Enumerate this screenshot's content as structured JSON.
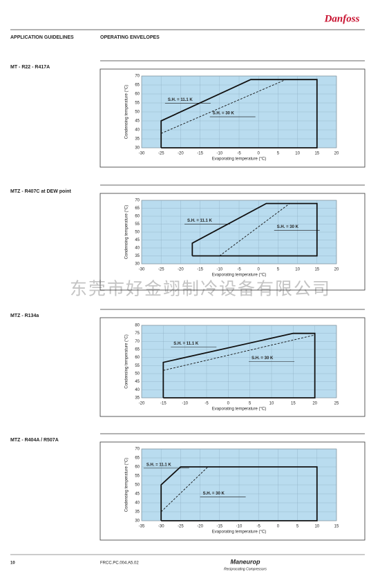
{
  "header": {
    "brand": "Danfoss",
    "left": "APPLICATION GUIDELINES",
    "right": "OPERATING ENVELOPES"
  },
  "watermark": "东莞市好金翊制冷设备有限公司",
  "footer": {
    "page": "10",
    "code": "FRCC.PC.004.A5.02",
    "brand": "Maneurop",
    "tagline": "Reciprocating Compressors"
  },
  "sections": [
    {
      "title": "MT  -  R22 - R417A"
    },
    {
      "title": "MTZ  -  R407C at DEW point"
    },
    {
      "title": "MTZ  -  R134a"
    },
    {
      "title": "MTZ  -  R404A / R507A"
    }
  ],
  "chart_data": [
    {
      "type": "line",
      "xlabel": "Evaporating temperature (°C)",
      "ylabel": "Condensing temperature (°C)",
      "xlim": [
        -30,
        20
      ],
      "xticks": [
        -30,
        -25,
        -20,
        -15,
        -10,
        -5,
        0,
        5,
        10,
        15,
        20
      ],
      "ylim": [
        30,
        70
      ],
      "yticks": [
        30,
        35,
        40,
        45,
        50,
        55,
        60,
        65,
        70
      ],
      "grid": true,
      "series": [
        {
          "name": "S.H. = 11.1 K",
          "color": "#111111",
          "linestyle": "solid",
          "x": [
            -25,
            -25,
            -2,
            15,
            15,
            -25
          ],
          "values": [
            30,
            45,
            68,
            68,
            30,
            30
          ]
        },
        {
          "name": "S.H. = 30 K",
          "color": "#111111",
          "linestyle": "dashed",
          "x": [
            -25,
            7
          ],
          "values": [
            38,
            68
          ]
        }
      ]
    },
    {
      "type": "line",
      "xlabel": "Evaporating temperature (°C)",
      "ylabel": "Condensing temperature (°C)",
      "xlim": [
        -30,
        20
      ],
      "xticks": [
        -30,
        -25,
        -20,
        -15,
        -10,
        -5,
        0,
        5,
        10,
        15,
        20
      ],
      "ylim": [
        30,
        70
      ],
      "yticks": [
        30,
        35,
        40,
        45,
        50,
        55,
        60,
        65,
        70
      ],
      "grid": true,
      "series": [
        {
          "name": "S.H. = 11.1 K",
          "color": "#111111",
          "linestyle": "solid",
          "x": [
            -17,
            -17,
            2,
            15,
            15,
            -17
          ],
          "values": [
            35,
            43,
            68,
            68,
            35,
            35
          ]
        },
        {
          "name": "S.H. = 30 K",
          "color": "#111111",
          "linestyle": "dashed",
          "x": [
            -10,
            8
          ],
          "values": [
            35,
            68
          ]
        }
      ]
    },
    {
      "type": "line",
      "xlabel": "Evaporating temperature (°C)",
      "ylabel": "Condensing temperature (°C)",
      "xlim": [
        -20,
        25
      ],
      "xticks": [
        -20,
        -15,
        -10,
        -5,
        0,
        5,
        10,
        15,
        20,
        25
      ],
      "ylim": [
        35,
        80
      ],
      "yticks": [
        35,
        40,
        45,
        50,
        55,
        60,
        65,
        70,
        75,
        80
      ],
      "grid": true,
      "series": [
        {
          "name": "S.H. = 11.1 K",
          "color": "#111111",
          "linestyle": "solid",
          "x": [
            -15,
            -15,
            15,
            20,
            20,
            -15
          ],
          "values": [
            35,
            57,
            75,
            75,
            35,
            35
          ]
        },
        {
          "name": "S.H. = 30 K",
          "color": "#111111",
          "linestyle": "dashed",
          "x": [
            -15,
            20
          ],
          "values": [
            52,
            74
          ]
        }
      ]
    },
    {
      "type": "line",
      "xlabel": "Evaporating temperature (°C)",
      "ylabel": "Condensing temperature (°C)",
      "xlim": [
        -35,
        15
      ],
      "xticks": [
        -35,
        -30,
        -25,
        -20,
        -15,
        -10,
        -5,
        0,
        5,
        10,
        15
      ],
      "ylim": [
        30,
        70
      ],
      "yticks": [
        30,
        35,
        40,
        45,
        50,
        55,
        60,
        65,
        70
      ],
      "grid": true,
      "series": [
        {
          "name": "S.H. = 11.1 K",
          "color": "#111111",
          "linestyle": "solid",
          "x": [
            -30,
            -30,
            -25,
            10,
            10,
            -30
          ],
          "values": [
            30,
            50,
            60,
            60,
            30,
            30
          ]
        },
        {
          "name": "S.H. = 30 K",
          "color": "#111111",
          "linestyle": "dashed",
          "x": [
            -30,
            -18
          ],
          "values": [
            35,
            60
          ]
        }
      ]
    }
  ]
}
